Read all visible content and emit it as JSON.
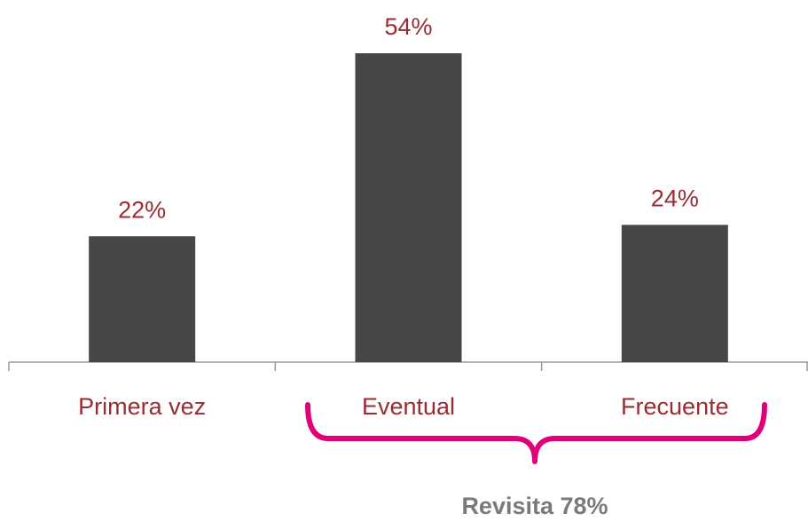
{
  "chart_data": {
    "type": "bar",
    "categories": [
      "Primera vez",
      "Eventual",
      "Frecuente"
    ],
    "values": [
      22,
      54,
      24
    ],
    "value_labels": [
      "22%",
      "54%",
      "24%"
    ],
    "color": "#474747",
    "label_color": "#9b2b33",
    "annotation": "Revisita 78%"
  }
}
